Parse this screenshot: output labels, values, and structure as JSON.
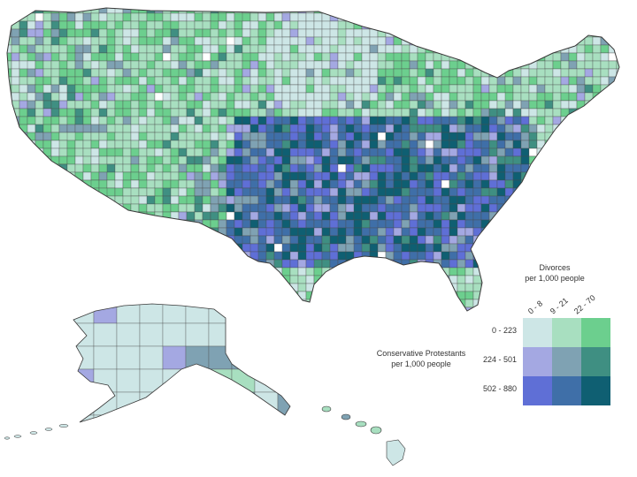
{
  "map": {
    "regions": [
      "contiguous-us",
      "alaska",
      "hawaii"
    ]
  },
  "legend": {
    "x_title_line1": "Divorces",
    "x_title_line2": "per 1,000 people",
    "y_title_line1": "Conservative Protestants",
    "y_title_line2": "per 1,000 people",
    "col_labels": [
      "0 - 8",
      "9 - 21",
      "22 - 70"
    ],
    "row_labels": [
      "0 - 223",
      "224 - 501",
      "502 - 880"
    ],
    "colors": [
      [
        "#cde6e6",
        "#a8dfc0",
        "#6ccf8e"
      ],
      [
        "#a4a8e2",
        "#7fa2b3",
        "#3f8f82"
      ],
      [
        "#5f6fd6",
        "#3f6fa8",
        "#0f5f72"
      ]
    ]
  },
  "colors": {
    "background": "#ffffff",
    "county_border": "#4a4a4a",
    "empty_county": "#ffffff"
  }
}
